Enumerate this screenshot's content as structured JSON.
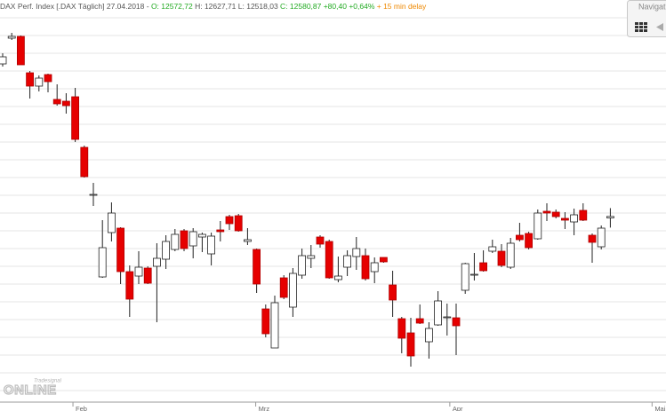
{
  "chart_data": {
    "type": "candlestick",
    "header": [
      {
        "text": "DAX Perf. Index [.DAX Täglich] 27.04.2018 - ",
        "color": "#555555"
      },
      {
        "text": "O: 12572,72",
        "color": "#22aa22"
      },
      {
        "text": " H: 12627,71 L: 12518,03 ",
        "color": "#555555"
      },
      {
        "text": "C: 12580,87 +80,40 +0,64%",
        "color": "#22aa22"
      },
      {
        "text": " + 15 min delay",
        "color": "#ee8800"
      }
    ],
    "open": [
      13440,
      13585,
      13595,
      13390,
      13315,
      13380,
      13240,
      13230,
      13255,
      12970,
      12705,
      12240,
      12490,
      12515,
      12270,
      12245,
      12290,
      12300,
      12340,
      12395,
      12500,
      12415,
      12465,
      12370,
      12505,
      12580,
      12585,
      12440,
      12395,
      12060,
      11840,
      12235,
      12070,
      12250,
      12345,
      12465,
      12440,
      12225,
      12295,
      12355,
      12360,
      12270,
      12350,
      12195,
      12005,
      11925,
      12005,
      11875,
      11970,
      12015,
      12010,
      12165,
      12250,
      12320,
      12385,
      12385,
      12295,
      12475,
      12485,
      12455,
      12610,
      12605,
      12570,
      12550,
      12615,
      12475,
      12410,
      12572.72
    ],
    "high": [
      13500,
      13615,
      13600,
      13400,
      13375,
      13385,
      13325,
      13275,
      13305,
      12980,
      12770,
      12560,
      12660,
      12520,
      12305,
      12385,
      12300,
      12430,
      12475,
      12510,
      12510,
      12515,
      12490,
      12490,
      12555,
      12590,
      12595,
      12515,
      12400,
      12085,
      12135,
      12250,
      12290,
      12400,
      12420,
      12475,
      12450,
      12355,
      12390,
      12465,
      12400,
      12350,
      12350,
      12275,
      12015,
      12010,
      12085,
      11985,
      12160,
      12090,
      12090,
      12320,
      12375,
      12390,
      12450,
      12425,
      12460,
      12545,
      12495,
      12620,
      12655,
      12620,
      12605,
      12625,
      12655,
      12485,
      12530,
      12627.71
    ],
    "low": [
      13425,
      13575,
      13435,
      13245,
      13285,
      13280,
      13205,
      13160,
      13000,
      12800,
      12640,
      12235,
      12440,
      12200,
      12015,
      12200,
      12200,
      11985,
      12285,
      12385,
      12385,
      12345,
      12380,
      12305,
      12440,
      12505,
      12495,
      12420,
      12150,
      11900,
      11840,
      12115,
      12015,
      12230,
      12290,
      12405,
      12230,
      12210,
      12245,
      12280,
      12220,
      12205,
      12320,
      12015,
      11810,
      11735,
      11975,
      11780,
      11965,
      11910,
      11800,
      12145,
      12220,
      12270,
      12375,
      12295,
      12285,
      12440,
      12395,
      12450,
      12555,
      12570,
      12510,
      12475,
      12555,
      12320,
      12395,
      12518.03
    ],
    "close": [
      13480,
      13595,
      13435,
      13315,
      13360,
      13340,
      13215,
      13205,
      13015,
      12805,
      12705,
      12405,
      12600,
      12270,
      12115,
      12295,
      12205,
      12345,
      12440,
      12480,
      12400,
      12495,
      12480,
      12470,
      12495,
      12540,
      12500,
      12450,
      12200,
      11920,
      12095,
      12125,
      12260,
      12360,
      12360,
      12425,
      12235,
      12245,
      12360,
      12400,
      12230,
      12320,
      12325,
      12110,
      11895,
      11795,
      11980,
      11950,
      12105,
      12015,
      11965,
      12315,
      12255,
      12275,
      12410,
      12305,
      12430,
      12450,
      12405,
      12600,
      12600,
      12580,
      12560,
      12590,
      12560,
      12435,
      12515,
      12580.87
    ],
    "up_color": "#ffffff",
    "down_color": "#e60000",
    "ylim": [
      11485,
      13800
    ],
    "yticks": [
      11500,
      11600,
      11700,
      11800,
      11900,
      12000,
      12100,
      12200,
      12300,
      12400,
      12500,
      12600,
      12700,
      12800,
      12900,
      13000,
      13100,
      13200,
      13300,
      13400,
      13500,
      13600,
      13700
    ],
    "xticks": [
      {
        "value": 7.75,
        "label": "Feb"
      },
      {
        "value": 27.9,
        "label": "Mrz"
      },
      {
        "value": 49.3,
        "label": "Apr"
      },
      {
        "value": 71.6,
        "label": "Mai"
      }
    ],
    "grid": true,
    "navigator": "Navigat",
    "logo": {
      "top": "Tradesignal",
      "bottom": "ONLINE"
    }
  }
}
